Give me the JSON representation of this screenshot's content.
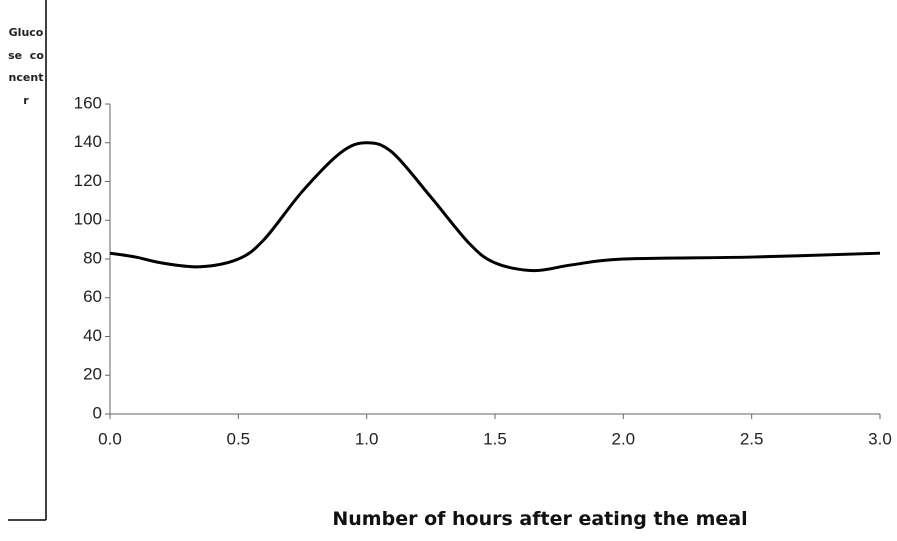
{
  "chart_data": {
    "type": "line",
    "x_label": "Number of hours after eating the meal",
    "y_label": "Glucose  concentr",
    "x": [
      0,
      0.1,
      0.2,
      0.35,
      0.5,
      0.6,
      0.75,
      0.9,
      1.0,
      1.1,
      1.25,
      1.4,
      1.5,
      1.65,
      1.8,
      2.0,
      2.5,
      3.0
    ],
    "series": [
      {
        "color": "#000000",
        "values": [
          83,
          81,
          78,
          76,
          80,
          90,
          115,
          135,
          140,
          135,
          112,
          88,
          78,
          74,
          77,
          80,
          81,
          83
        ]
      }
    ],
    "xlim": [
      0,
      3
    ],
    "xticks": [
      {
        "value": 0,
        "label": "0.0"
      },
      0.5,
      {
        "value": 1,
        "label": "1.0"
      },
      1.5,
      {
        "value": 2,
        "label": "2.0"
      },
      2.5,
      {
        "value": 3,
        "label": "3.0"
      }
    ],
    "ylim": [
      0,
      160
    ],
    "yticks": [
      0,
      20,
      40,
      60,
      80,
      100,
      120,
      140,
      160
    ]
  }
}
